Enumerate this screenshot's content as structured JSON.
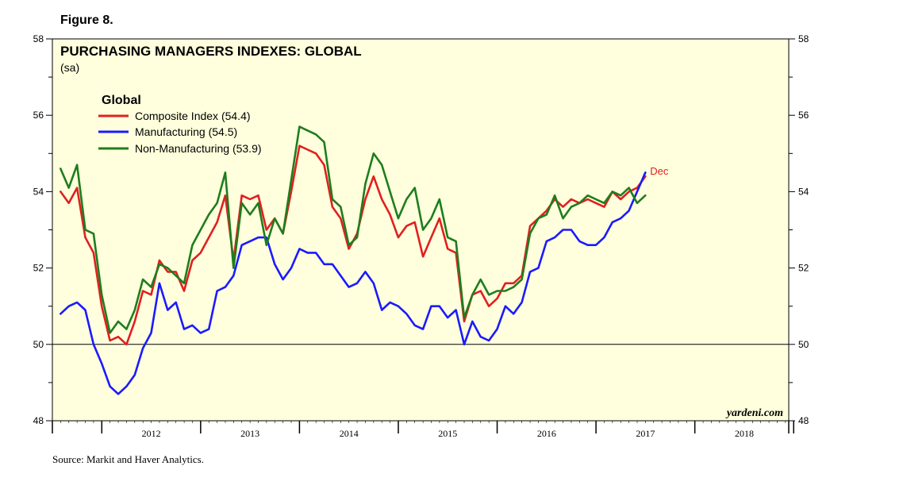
{
  "figure_label": "Figure 8.",
  "source": "Source:  Markit and Haver Analytics.",
  "watermark": "yardeni.com",
  "chart_data": {
    "type": "line",
    "title": "PURCHASING MANAGERS INDEXES: GLOBAL",
    "subtitle": "(sa)",
    "legend_title": "Global",
    "legend_position": "top-left",
    "ylim": [
      48,
      58
    ],
    "yticks": [
      48,
      50,
      52,
      54,
      56,
      58
    ],
    "reference_line": 50,
    "x_range": [
      2011.5,
      2018.95
    ],
    "x_tick_labels": [
      "2012",
      "2013",
      "2014",
      "2015",
      "2016",
      "2017",
      "2018"
    ],
    "end_label": "Dec",
    "colors": {
      "composite": "#e02020",
      "manufacturing": "#1a1aff",
      "non_manufacturing": "#1e7d1e",
      "plot_bg": "#ffffdd"
    },
    "series": [
      {
        "key": "composite",
        "name": "Composite Index (54.4)",
        "color": "#e02020",
        "start": 2011.583,
        "step": 0.08333,
        "values": [
          54.0,
          53.7,
          54.1,
          52.8,
          52.4,
          51.0,
          50.1,
          50.2,
          50.0,
          50.6,
          51.4,
          51.3,
          52.2,
          51.9,
          51.9,
          51.4,
          52.2,
          52.4,
          52.8,
          53.2,
          53.9,
          52.2,
          53.9,
          53.8,
          53.9,
          53.0,
          53.3,
          52.9,
          54.0,
          55.2,
          55.1,
          55.0,
          54.7,
          53.6,
          53.3,
          52.5,
          52.9,
          53.8,
          54.4,
          53.8,
          53.4,
          52.8,
          53.1,
          53.2,
          52.3,
          52.8,
          53.3,
          52.5,
          52.4,
          50.6,
          51.3,
          51.4,
          51.0,
          51.2,
          51.6,
          51.6,
          51.8,
          53.1,
          53.3,
          53.5,
          53.8,
          53.6,
          53.8,
          53.7,
          53.8,
          53.7,
          53.6,
          54.0,
          53.8,
          54.0,
          54.1,
          54.4
        ]
      },
      {
        "key": "manufacturing",
        "name": "Manufacturing (54.5)",
        "color": "#1a1aff",
        "start": 2011.583,
        "step": 0.08333,
        "values": [
          50.8,
          51.0,
          51.1,
          50.9,
          50.0,
          49.5,
          48.9,
          48.7,
          48.9,
          49.2,
          49.9,
          50.3,
          51.6,
          50.9,
          51.1,
          50.4,
          50.5,
          50.3,
          50.4,
          51.4,
          51.5,
          51.8,
          52.6,
          52.7,
          52.8,
          52.8,
          52.1,
          51.7,
          52.0,
          52.5,
          52.4,
          52.4,
          52.1,
          52.1,
          51.8,
          51.5,
          51.6,
          51.9,
          51.6,
          50.9,
          51.1,
          51.0,
          50.8,
          50.5,
          50.4,
          51.0,
          51.0,
          50.7,
          50.9,
          50.0,
          50.6,
          50.2,
          50.1,
          50.4,
          51.0,
          50.8,
          51.1,
          51.9,
          52.0,
          52.7,
          52.8,
          53.0,
          53.0,
          52.7,
          52.6,
          52.6,
          52.8,
          53.2,
          53.3,
          53.5,
          54.0,
          54.5
        ]
      },
      {
        "key": "non_manufacturing",
        "name": "Non-Manufacturing (53.9)",
        "color": "#1e7d1e",
        "start": 2011.583,
        "step": 0.08333,
        "values": [
          54.6,
          54.1,
          54.7,
          53.0,
          52.9,
          51.3,
          50.3,
          50.6,
          50.4,
          50.9,
          51.7,
          51.5,
          52.1,
          52.0,
          51.8,
          51.6,
          52.6,
          53.0,
          53.4,
          53.7,
          54.5,
          52.0,
          53.7,
          53.4,
          53.7,
          52.6,
          53.3,
          52.9,
          54.3,
          55.7,
          55.6,
          55.5,
          55.3,
          53.8,
          53.6,
          52.6,
          52.8,
          54.2,
          55.0,
          54.7,
          54.0,
          53.3,
          53.8,
          54.1,
          53.0,
          53.3,
          53.8,
          52.8,
          52.7,
          50.7,
          51.3,
          51.7,
          51.3,
          51.4,
          51.4,
          51.5,
          51.7,
          52.9,
          53.3,
          53.4,
          53.9,
          53.3,
          53.6,
          53.7,
          53.9,
          53.8,
          53.7,
          54.0,
          53.9,
          54.1,
          53.7,
          53.9
        ]
      }
    ]
  }
}
